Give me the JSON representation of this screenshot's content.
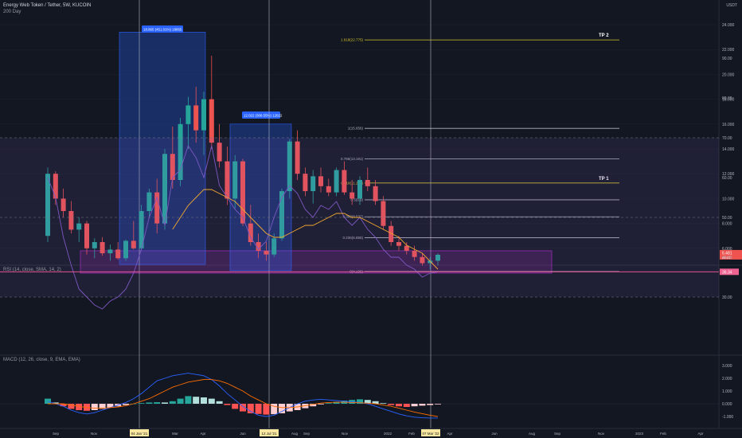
{
  "header": {
    "title": "Energy Web Token / Tether, 5W, KUCOIN",
    "ma_label": "200 Day",
    "currency": "USDT"
  },
  "main_price_axis": {
    "ticks": [
      "24.000",
      "22.000",
      "20.000",
      "18.000",
      "16.000",
      "14.000",
      "12.000",
      "10.000",
      "8.000",
      "6.000"
    ],
    "values": [
      24,
      22,
      20,
      18,
      16,
      14,
      12,
      10,
      8,
      6
    ],
    "last_price": "5.481",
    "countdown": "84:13"
  },
  "rsi": {
    "label": "RSI (14, close, SMA, 14, 2)",
    "ticks": [
      "90.00",
      "80.00",
      "70.00",
      "60.00",
      "50.00",
      "40.00",
      "30.00"
    ],
    "tick_values": [
      90,
      80,
      70,
      60,
      50,
      40,
      30
    ],
    "current": "36.34",
    "current_value": 36.34,
    "band": [
      30,
      70
    ]
  },
  "macd": {
    "label": "MACD (12, 26, close, 9, EMA, EMA)",
    "ticks": [
      "3.000",
      "2.000",
      "1.000",
      "0.000",
      "-1.000"
    ],
    "tick_values": [
      3,
      2,
      1,
      0,
      -1
    ]
  },
  "time_axis": {
    "labels": [
      "Sep",
      "Nov",
      "04 Jan '21",
      "Mar",
      "Apr",
      "Jun",
      "12 Jul '21",
      "Aug",
      "Sep",
      "Nov",
      "2022",
      "Feb",
      "07 Mar '22",
      "Apr",
      "Jun",
      "Aug",
      "Sep",
      "Nov",
      "2023",
      "Feb",
      "Apr"
    ],
    "highlighted": [
      "04 Jan '21",
      "12 Jul '21",
      "07 Mar '22"
    ]
  },
  "annotations": {
    "range_box_1": "18.865 (451.01%) 18865",
    "range_box_2": "12.022 (308.55%) 12022",
    "tp1": "TP 1",
    "tp2": "TP 2"
  },
  "fib_levels": [
    {
      "label": "1.618(22.775)",
      "value": 22.775,
      "color": "#d4c32b"
    },
    {
      "label": "1(15.656)",
      "value": 15.656,
      "color": "#b2b5be"
    },
    {
      "label": "0.786(13.191)",
      "value": 13.191,
      "color": "#b2b5be"
    },
    {
      "label": "0.618(11.255)",
      "value": 11.255,
      "color": "#d4c32b"
    },
    {
      "label": "0.5(9.9)",
      "value": 9.9,
      "color": "#b2b5be"
    },
    {
      "label": "0.382(8.537)",
      "value": 8.537,
      "color": "#b2b5be"
    },
    {
      "label": "0.236(6.855)",
      "value": 6.855,
      "color": "#b2b5be"
    },
    {
      "label": "0(4.136)",
      "value": 4.136,
      "color": "#b2b5be"
    }
  ],
  "chart_data": [
    {
      "type": "candlestick",
      "title": "Energy Web Token / Tether, 5W, KUCOIN",
      "ylim": [
        4,
        25
      ],
      "ohlc": [
        [
          7,
          12.5,
          6.5,
          12
        ],
        [
          12,
          12.2,
          9.5,
          10
        ],
        [
          10,
          10.8,
          8.5,
          9
        ],
        [
          9,
          9.8,
          7.2,
          7.5
        ],
        [
          7.5,
          8.5,
          6.5,
          8
        ],
        [
          8,
          8.2,
          5.5,
          6
        ],
        [
          6,
          6.8,
          5.2,
          6.5
        ],
        [
          6.5,
          6.9,
          5.4,
          5.6
        ],
        [
          5.6,
          6.3,
          5,
          5.9
        ],
        [
          5.9,
          6.5,
          5.1,
          5.2
        ],
        [
          5.2,
          6.7,
          5,
          6.6
        ],
        [
          6.6,
          8.2,
          5.9,
          6
        ],
        [
          6,
          9.5,
          5.8,
          9
        ],
        [
          9,
          10.8,
          8.5,
          10.5
        ],
        [
          10.5,
          11.6,
          7.2,
          8
        ],
        [
          8,
          14,
          7.5,
          13.6
        ],
        [
          13.6,
          15.8,
          10.8,
          11.5
        ],
        [
          11.5,
          16.5,
          11,
          16
        ],
        [
          16,
          18.2,
          14,
          17.5
        ],
        [
          17.5,
          19,
          14.5,
          15.5
        ],
        [
          15.5,
          18.6,
          13.5,
          18
        ],
        [
          18,
          21.5,
          14,
          14.5
        ],
        [
          14.5,
          16,
          12.5,
          13
        ],
        [
          13,
          14.2,
          9.5,
          10
        ],
        [
          10,
          13.5,
          9.2,
          13
        ],
        [
          13,
          13.2,
          7.8,
          8
        ],
        [
          8,
          9.5,
          6.2,
          6.5
        ],
        [
          6.5,
          7.2,
          5.2,
          5.8
        ],
        [
          5.8,
          6.5,
          5,
          5.5
        ],
        [
          5.5,
          7.2,
          5.3,
          6.8
        ],
        [
          6.8,
          10.8,
          6.6,
          10.6
        ],
        [
          10.6,
          14.8,
          10,
          14.6
        ],
        [
          14.6,
          15.5,
          11.5,
          12
        ],
        [
          12,
          12.5,
          10.2,
          10.6
        ],
        [
          10.6,
          12.3,
          9.6,
          11.8
        ],
        [
          11.8,
          12.5,
          10.5,
          11
        ],
        [
          11,
          11.6,
          10.2,
          10.5
        ],
        [
          10.5,
          12.5,
          10.2,
          12.3
        ],
        [
          12.3,
          13,
          10.3,
          10.5
        ],
        [
          10.5,
          11.5,
          9.5,
          10
        ],
        [
          10,
          11.8,
          9.5,
          11.5
        ],
        [
          11.5,
          12.5,
          10.6,
          11
        ],
        [
          11,
          11.5,
          9.5,
          9.8
        ],
        [
          9.8,
          10.2,
          7.5,
          7.8
        ],
        [
          7.8,
          8.2,
          6.2,
          6.5
        ],
        [
          6.5,
          7,
          5.8,
          6.2
        ],
        [
          6.2,
          6.5,
          5.5,
          5.8
        ],
        [
          5.8,
          6.2,
          5,
          5.3
        ],
        [
          5.3,
          5.6,
          4.6,
          4.8
        ],
        [
          4.8,
          5.3,
          4.3,
          5
        ],
        [
          5,
          5.6,
          4.6,
          5.481
        ]
      ]
    },
    {
      "type": "line",
      "title": "RSI (14, close, SMA, 14, 2)",
      "ylim": [
        20,
        100
      ],
      "series": [
        {
          "values": [
            60,
            55,
            45,
            38,
            32,
            30,
            28,
            27,
            29,
            30,
            32,
            36,
            42,
            50,
            55,
            48,
            60,
            62,
            68,
            65,
            60,
            68,
            58,
            55,
            52,
            50,
            45,
            42,
            44,
            50,
            55,
            58,
            56,
            52,
            50,
            53,
            52,
            54,
            50,
            48,
            50,
            47,
            45,
            42,
            40,
            40,
            38,
            37,
            35,
            36,
            36.34
          ]
        },
        {
          "values": [
            null,
            null,
            null,
            null,
            null,
            null,
            null,
            null,
            null,
            null,
            null,
            null,
            null,
            null,
            null,
            null,
            47,
            50,
            53,
            55,
            57,
            57,
            56,
            55,
            54,
            52,
            50,
            48,
            46,
            45,
            45,
            46,
            47,
            48,
            48,
            49,
            50,
            51,
            51,
            50,
            50,
            49,
            48,
            47,
            46,
            45,
            43,
            42,
            41,
            39,
            37
          ]
        }
      ]
    },
    {
      "type": "bar",
      "title": "MACD (12, 26, close, 9, EMA, EMA)",
      "ylim": [
        -1.7,
        3.4
      ],
      "values": [
        0.4,
        0.1,
        -0.2,
        -0.4,
        -0.5,
        -0.55,
        -0.5,
        -0.4,
        -0.3,
        -0.2,
        -0.1,
        0,
        0.05,
        0.1,
        0.12,
        0.1,
        0.2,
        0.4,
        0.6,
        0.55,
        0.5,
        0.4,
        0.2,
        -0.1,
        -0.4,
        -0.6,
        -0.75,
        -0.8,
        -0.85,
        -0.82,
        -0.75,
        -0.6,
        -0.5,
        -0.35,
        -0.2,
        -0.05,
        0.05,
        0.15,
        0.25,
        0.3,
        0.35,
        0.3,
        0.2,
        0.05,
        -0.1,
        -0.2,
        -0.25,
        -0.2,
        -0.15,
        -0.1,
        -0.05
      ],
      "series": [
        {
          "values": [
            0.2,
            0,
            -0.2,
            -0.5,
            -0.7,
            -0.8,
            -0.7,
            -0.5,
            -0.3,
            -0.1,
            0.1,
            0.4,
            0.8,
            1.3,
            1.8,
            2.0,
            2.2,
            2.3,
            2.4,
            2.3,
            2.2,
            1.9,
            1.4,
            0.8,
            0.3,
            -0.2,
            -0.6,
            -0.9,
            -1.0,
            -0.9,
            -0.6,
            -0.3,
            0,
            0.2,
            0.3,
            0.35,
            0.3,
            0.25,
            0.2,
            0.15,
            0.1,
            0,
            -0.2,
            -0.4,
            -0.6,
            -0.8,
            -0.95,
            -1.05,
            -1.1,
            -1.12,
            -1.12
          ]
        },
        {
          "values": [
            0,
            0,
            0,
            -0.1,
            -0.2,
            -0.3,
            -0.35,
            -0.35,
            -0.3,
            -0.25,
            -0.15,
            0,
            0.2,
            0.4,
            0.7,
            1.0,
            1.3,
            1.5,
            1.7,
            1.8,
            1.9,
            1.9,
            1.8,
            1.6,
            1.3,
            1.0,
            0.6,
            0.3,
            0,
            -0.2,
            -0.3,
            -0.3,
            -0.25,
            -0.15,
            -0.05,
            0.05,
            0.1,
            0.12,
            0.12,
            0.1,
            0.08,
            0.04,
            0,
            -0.1,
            -0.2,
            -0.35,
            -0.5,
            -0.65,
            -0.78,
            -0.9,
            -1.0
          ]
        }
      ]
    }
  ]
}
